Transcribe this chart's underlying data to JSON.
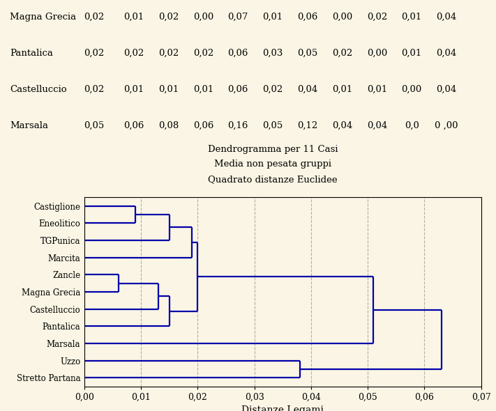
{
  "title_line1": "Dendrogramma per 11 Casi",
  "title_line2": "Media non pesata gruppi",
  "title_line3": "Quadrato distanze Euclidee",
  "xlabel": "Distanze Legami",
  "bg_color": "#FAF5E4",
  "table_rows": [
    {
      "label": "Magna Grecia",
      "values": [
        "0,02",
        "0,01",
        "0,02",
        "0,00",
        "0,07",
        "0,01",
        "0,06",
        "0,00",
        "0,02",
        "0,01",
        "0,04"
      ]
    },
    {
      "label": "Pantalica",
      "values": [
        "0,02",
        "0,02",
        "0,02",
        "0,02",
        "0,06",
        "0,03",
        "0,05",
        "0,02",
        "0,00",
        "0,01",
        "0,04"
      ]
    },
    {
      "label": "Castelluccio",
      "values": [
        "0,02",
        "0,01",
        "0,01",
        "0,01",
        "0,06",
        "0,02",
        "0,04",
        "0,01",
        "0,01",
        "0,00",
        "0,04"
      ]
    },
    {
      "label": "Marsala",
      "values": [
        "0,05",
        "0,06",
        "0,08",
        "0,06",
        "0,16",
        "0,05",
        "0,12",
        "0,04",
        "0,04",
        "0,0",
        "0 ,00"
      ]
    }
  ],
  "leaves": [
    "Castiglione",
    "Eneolitico",
    "TGPunica",
    "Marcita",
    "Zancle",
    "Magna Grecia",
    "Castelluccio",
    "Pantalica",
    "Marsala",
    "Uzzo",
    "Stretto Partana"
  ],
  "xlim": [
    0.0,
    0.07
  ],
  "xticks": [
    0.0,
    0.01,
    0.02,
    0.03,
    0.04,
    0.05,
    0.06,
    0.07
  ],
  "xtick_labels": [
    "0,00",
    "0,01",
    "0,02",
    "0,03",
    "0,04",
    "0,05",
    "0,06",
    "0,07"
  ],
  "dendrogram_color": "#0000AA",
  "segments": [
    [
      [
        0.0,
        10
      ],
      [
        0.009,
        10
      ]
    ],
    [
      [
        0.0,
        9
      ],
      [
        0.009,
        9
      ]
    ],
    [
      [
        0.009,
        9
      ],
      [
        0.009,
        10
      ]
    ],
    [
      [
        0.009,
        9.5
      ],
      [
        0.015,
        9.5
      ]
    ],
    [
      [
        0.0,
        8
      ],
      [
        0.015,
        8
      ]
    ],
    [
      [
        0.015,
        8
      ],
      [
        0.015,
        9.5
      ]
    ],
    [
      [
        0.015,
        8.75
      ],
      [
        0.019,
        8.75
      ]
    ],
    [
      [
        0.0,
        7
      ],
      [
        0.019,
        7
      ]
    ],
    [
      [
        0.019,
        7
      ],
      [
        0.019,
        8.75
      ]
    ],
    [
      [
        0.019,
        7.875
      ],
      [
        0.02,
        7.875
      ]
    ],
    [
      [
        0.0,
        6
      ],
      [
        0.006,
        6
      ]
    ],
    [
      [
        0.0,
        5
      ],
      [
        0.006,
        5
      ]
    ],
    [
      [
        0.006,
        5
      ],
      [
        0.006,
        6
      ]
    ],
    [
      [
        0.006,
        5.5
      ],
      [
        0.013,
        5.5
      ]
    ],
    [
      [
        0.0,
        4
      ],
      [
        0.013,
        4
      ]
    ],
    [
      [
        0.013,
        4
      ],
      [
        0.013,
        5.5
      ]
    ],
    [
      [
        0.013,
        4.75
      ],
      [
        0.015,
        4.75
      ]
    ],
    [
      [
        0.0,
        3
      ],
      [
        0.015,
        3
      ]
    ],
    [
      [
        0.015,
        3
      ],
      [
        0.015,
        4.75
      ]
    ],
    [
      [
        0.015,
        3.875
      ],
      [
        0.02,
        3.875
      ]
    ],
    [
      [
        0.02,
        3.875
      ],
      [
        0.02,
        7.875
      ]
    ],
    [
      [
        0.02,
        5.875
      ],
      [
        0.051,
        5.875
      ]
    ],
    [
      [
        0.0,
        2
      ],
      [
        0.051,
        2
      ]
    ],
    [
      [
        0.051,
        2
      ],
      [
        0.051,
        5.875
      ]
    ],
    [
      [
        0.051,
        3.9375
      ],
      [
        0.063,
        3.9375
      ]
    ],
    [
      [
        0.0,
        1
      ],
      [
        0.038,
        1
      ]
    ],
    [
      [
        0.0,
        0
      ],
      [
        0.038,
        0
      ]
    ],
    [
      [
        0.038,
        0
      ],
      [
        0.038,
        1
      ]
    ],
    [
      [
        0.038,
        0.5
      ],
      [
        0.063,
        0.5
      ]
    ],
    [
      [
        0.063,
        0.5
      ],
      [
        0.063,
        3.9375
      ]
    ]
  ]
}
